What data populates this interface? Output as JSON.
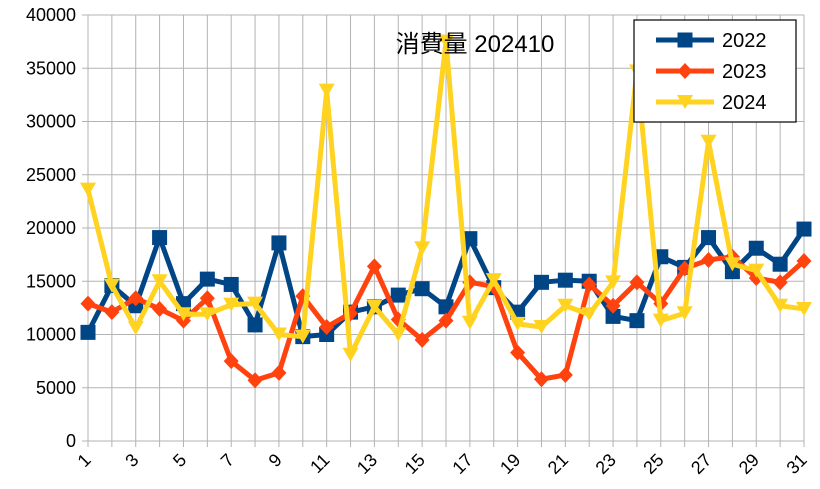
{
  "chart_data": {
    "type": "line",
    "title": "消費量 202410",
    "xlabel": "",
    "ylabel": "",
    "ylim": [
      0,
      40000
    ],
    "yticks": [
      0,
      5000,
      10000,
      15000,
      20000,
      25000,
      30000,
      35000,
      40000
    ],
    "x": [
      1,
      2,
      3,
      4,
      5,
      6,
      7,
      8,
      9,
      10,
      11,
      12,
      13,
      14,
      15,
      16,
      17,
      18,
      19,
      20,
      21,
      22,
      23,
      24,
      25,
      26,
      27,
      28,
      29,
      30,
      31
    ],
    "xtick_labels": [
      "1",
      "3",
      "5",
      "7",
      "9",
      "11",
      "13",
      "15",
      "17",
      "19",
      "21",
      "23",
      "25",
      "27",
      "29",
      "31"
    ],
    "grid": true,
    "legend_position": "top-right",
    "series": [
      {
        "name": "2022",
        "color": "#004586",
        "marker": "square",
        "values": [
          10200,
          14600,
          12700,
          19100,
          12900,
          15200,
          14700,
          10900,
          18600,
          9800,
          10000,
          12100,
          12600,
          13700,
          14300,
          12600,
          19000,
          14400,
          12100,
          14900,
          15100,
          15000,
          11700,
          11300,
          17300,
          16300,
          19100,
          15900,
          18100,
          16600,
          19900
        ]
      },
      {
        "name": "2023",
        "color": "#ff420e",
        "marker": "diamond",
        "values": [
          12900,
          12100,
          13400,
          12400,
          11300,
          13400,
          7500,
          5700,
          6400,
          13600,
          10700,
          12000,
          16400,
          11400,
          9500,
          11300,
          14900,
          14500,
          8300,
          5800,
          6200,
          14700,
          12700,
          14900,
          12900,
          16200,
          17000,
          17300,
          15300,
          14900,
          16900
        ]
      },
      {
        "name": "2024",
        "color": "#ffd320",
        "marker": "triangle-down",
        "values": [
          23600,
          14600,
          10600,
          15000,
          11900,
          11900,
          12800,
          12900,
          10000,
          9800,
          32900,
          8100,
          12600,
          10000,
          18100,
          37500,
          11100,
          15100,
          11000,
          10700,
          12700,
          11900,
          14900,
          34700,
          11300,
          12000,
          28100,
          16600,
          16000,
          12700,
          12400
        ]
      }
    ]
  }
}
